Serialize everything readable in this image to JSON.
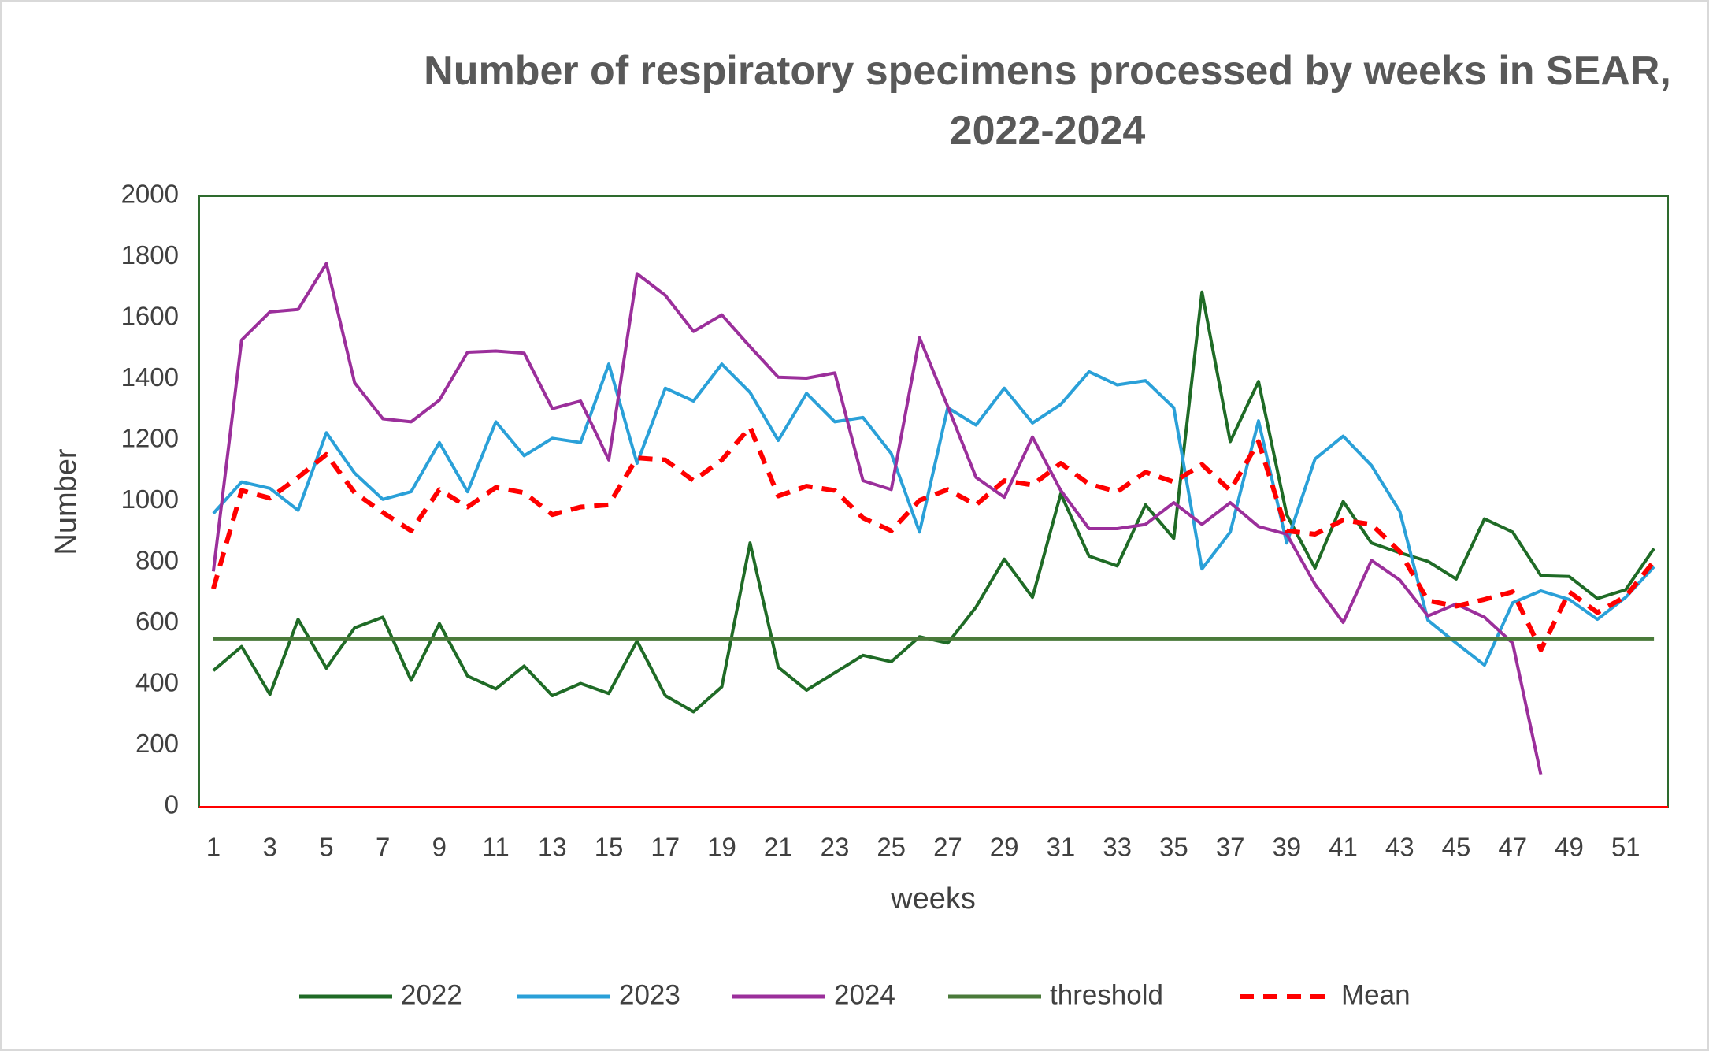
{
  "chart_data": {
    "type": "line",
    "title": "Number of respiratory specimens processed by weeks in SEAR, 2022-2024",
    "x_label": "weeks",
    "y_label": "Number",
    "categories": [
      1,
      null,
      3,
      null,
      5,
      null,
      7,
      null,
      9,
      null,
      11,
      null,
      13,
      null,
      15,
      null,
      17,
      null,
      19,
      null,
      21,
      null,
      23,
      null,
      25,
      null,
      27,
      null,
      29,
      null,
      31,
      null,
      33,
      null,
      35,
      null,
      37,
      null,
      39,
      null,
      41,
      null,
      43,
      null,
      45,
      null,
      47,
      null,
      49,
      null,
      51,
      null
    ],
    "ylim": [
      0,
      2000
    ],
    "yticks": [
      0,
      200,
      400,
      600,
      800,
      1000,
      1200,
      1400,
      1600,
      1800,
      2000
    ],
    "legend": "bottom",
    "series": [
      {
        "name": "2022",
        "color": "#1f6b26",
        "dash": false,
        "values": [
          446,
          525,
          368,
          614,
          454,
          586,
          621,
          414,
          600,
          428,
          386,
          461,
          364,
          404,
          371,
          543,
          364,
          311,
          393,
          864,
          457,
          382,
          439,
          496,
          475,
          557,
          536,
          654,
          811,
          686,
          1025,
          821,
          789,
          989,
          879,
          1686,
          1196,
          1393,
          957,
          782,
          1000,
          864,
          832,
          804,
          746,
          943,
          900,
          757,
          754,
          682,
          711,
          846
        ]
      },
      {
        "name": "2023",
        "color": "#2aa0d8",
        "dash": false,
        "values": [
          961,
          1064,
          1043,
          971,
          1225,
          1093,
          1007,
          1032,
          1193,
          1032,
          1261,
          1150,
          1207,
          1193,
          1450,
          1125,
          1371,
          1329,
          1450,
          1357,
          1200,
          1354,
          1261,
          1275,
          1157,
          900,
          1307,
          1250,
          1371,
          1257,
          1318,
          1425,
          1382,
          1396,
          1307,
          779,
          900,
          1264,
          864,
          1139,
          1214,
          1118,
          968,
          611,
          536,
          464,
          668,
          707,
          679,
          614,
          686,
          786
        ]
      },
      {
        "name": "2024",
        "color": "#9b2f9b",
        "dash": false,
        "values": [
          771,
          1529,
          1621,
          1629,
          1779,
          1389,
          1271,
          1261,
          1332,
          1489,
          1493,
          1486,
          1304,
          1329,
          1136,
          1746,
          1675,
          1557,
          1611,
          1507,
          1407,
          1404,
          1421,
          1068,
          1039,
          1536,
          1311,
          1079,
          1014,
          1211,
          1036,
          911,
          911,
          925,
          996,
          925,
          996,
          918,
          893,
          729,
          604,
          807,
          743,
          625,
          664,
          621,
          536,
          104,
          null,
          null,
          null,
          null
        ]
      },
      {
        "name": "threshold",
        "color": "#4a7a3a",
        "dash": false,
        "values": [
          550,
          550,
          550,
          550,
          550,
          550,
          550,
          550,
          550,
          550,
          550,
          550,
          550,
          550,
          550,
          550,
          550,
          550,
          550,
          550,
          550,
          550,
          550,
          550,
          550,
          550,
          550,
          550,
          550,
          550,
          550,
          550,
          550,
          550,
          550,
          550,
          550,
          550,
          550,
          550,
          550,
          550,
          550,
          550,
          550,
          550,
          550,
          550,
          550,
          550,
          550,
          550
        ]
      },
      {
        "name": "Mean",
        "color": "#ff0000",
        "dash": true,
        "values": [
          714,
          1036,
          1011,
          1079,
          1154,
          1029,
          964,
          904,
          1039,
          982,
          1046,
          1029,
          957,
          982,
          989,
          1143,
          1136,
          1068,
          1136,
          1243,
          1018,
          1050,
          1036,
          946,
          904,
          1004,
          1039,
          989,
          1068,
          1054,
          1125,
          1057,
          1032,
          1096,
          1064,
          1121,
          1036,
          1196,
          904,
          893,
          939,
          925,
          836,
          675,
          657,
          679,
          704,
          514,
          704,
          636,
          689,
          804
        ]
      }
    ]
  }
}
